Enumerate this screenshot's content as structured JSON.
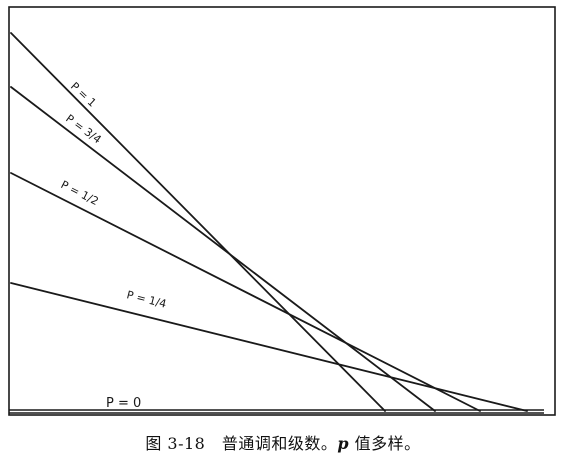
{
  "figure": {
    "labels": {
      "p1": "P = 1",
      "p34": "P = 3/4",
      "p12": "P = 1/2",
      "p14": "P = 1/4",
      "p0": "P = 0"
    }
  },
  "caption": {
    "prefix": "图 3-18　普通调和级数。",
    "p": "p",
    "suffix": " 值多样。"
  }
}
